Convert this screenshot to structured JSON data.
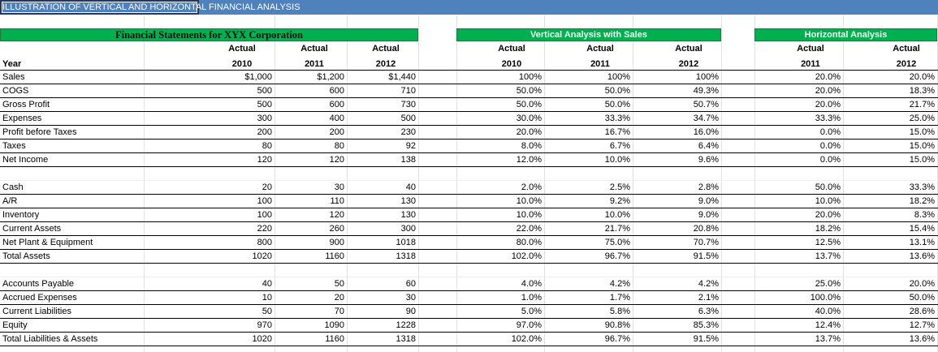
{
  "banner": {
    "title": "ILLUSTRATION OF VERTICAL AND HORIZONTAL FINANCIAL ANALYSIS"
  },
  "headers": {
    "fs": "Financial Statements for XYX Corporation",
    "va": "Vertical Analysis with Sales",
    "ha": "Horizontal Analysis"
  },
  "subheaders": {
    "year_label": "Year",
    "cols": [
      {
        "a": "Actual",
        "y": "2010"
      },
      {
        "a": "Actual",
        "y": "2011"
      },
      {
        "a": "Actual",
        "y": "2012"
      },
      {
        "a": "Actual",
        "y": "2010"
      },
      {
        "a": "Actual",
        "y": "2011"
      },
      {
        "a": "Actual",
        "y": "2012"
      },
      {
        "a": "Actual",
        "y": "2011"
      },
      {
        "a": "Actual",
        "y": "2012"
      }
    ]
  },
  "rows": [
    {
      "label": "Sales",
      "v": [
        "$1,000",
        "$1,200",
        "$1,440",
        "100%",
        "100%",
        "100%",
        "20.0%",
        "20.0%"
      ]
    },
    {
      "label": "COGS",
      "v": [
        "500",
        "600",
        "710",
        "50.0%",
        "50.0%",
        "49.3%",
        "20.0%",
        "18.3%"
      ]
    },
    {
      "label": "Gross Profit",
      "v": [
        "500",
        "600",
        "730",
        "50.0%",
        "50.0%",
        "50.7%",
        "20.0%",
        "21.7%"
      ]
    },
    {
      "label": "Expenses",
      "v": [
        "300",
        "400",
        "500",
        "30.0%",
        "33.3%",
        "34.7%",
        "33.3%",
        "25.0%"
      ]
    },
    {
      "label": "Profit before Taxes",
      "v": [
        "200",
        "200",
        "230",
        "20.0%",
        "16.7%",
        "16.0%",
        "0.0%",
        "15.0%"
      ]
    },
    {
      "label": "Taxes",
      "v": [
        "80",
        "80",
        "92",
        "8.0%",
        "6.7%",
        "6.4%",
        "0.0%",
        "15.0%"
      ]
    },
    {
      "label": "Net Income",
      "v": [
        "120",
        "120",
        "138",
        "12.0%",
        "10.0%",
        "9.6%",
        "0.0%",
        "15.0%"
      ]
    },
    {
      "label": "Cash",
      "v": [
        "20",
        "30",
        "40",
        "2.0%",
        "2.5%",
        "2.8%",
        "50.0%",
        "33.3%"
      ]
    },
    {
      "label": "A/R",
      "v": [
        "100",
        "110",
        "130",
        "10.0%",
        "9.2%",
        "9.0%",
        "10.0%",
        "18.2%"
      ]
    },
    {
      "label": "Inventory",
      "v": [
        "100",
        "120",
        "130",
        "10.0%",
        "10.0%",
        "9.0%",
        "20.0%",
        "8.3%"
      ]
    },
    {
      "label": "Current Assets",
      "v": [
        "220",
        "260",
        "300",
        "22.0%",
        "21.7%",
        "20.8%",
        "18.2%",
        "15.4%"
      ]
    },
    {
      "label": "Net Plant & Equipment",
      "v": [
        "800",
        "900",
        "1018",
        "80.0%",
        "75.0%",
        "70.7%",
        "12.5%",
        "13.1%"
      ]
    },
    {
      "label": "Total Assets",
      "v": [
        "1020",
        "1160",
        "1318",
        "102.0%",
        "96.7%",
        "91.5%",
        "13.7%",
        "13.6%"
      ]
    },
    {
      "label": "Accounts Payable",
      "v": [
        "40",
        "50",
        "60",
        "4.0%",
        "4.2%",
        "4.2%",
        "25.0%",
        "20.0%"
      ]
    },
    {
      "label": "Accrued Expenses",
      "v": [
        "10",
        "20",
        "30",
        "1.0%",
        "1.7%",
        "2.1%",
        "100.0%",
        "50.0%"
      ]
    },
    {
      "label": "Current Liabilities",
      "v": [
        "50",
        "70",
        "90",
        "5.0%",
        "5.8%",
        "6.3%",
        "40.0%",
        "28.6%"
      ]
    },
    {
      "label": "Equity",
      "v": [
        "970",
        "1090",
        "1228",
        "97.0%",
        "90.8%",
        "85.3%",
        "12.4%",
        "12.7%"
      ]
    },
    {
      "label": "Total Liabilities & Assets",
      "v": [
        "1020",
        "1160",
        "1318",
        "102.0%",
        "96.7%",
        "91.5%",
        "13.7%",
        "13.6%"
      ]
    }
  ]
}
